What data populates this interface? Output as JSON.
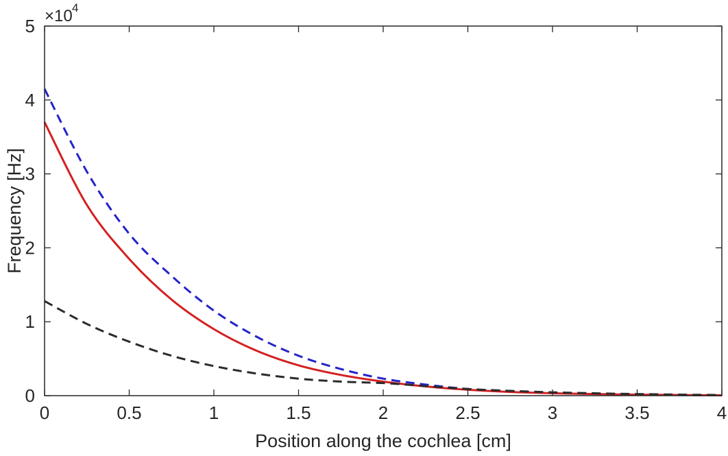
{
  "chart_data": {
    "type": "line",
    "title": "",
    "xlabel": "Position along the cochlea [cm]",
    "ylabel": "Frequency [Hz]",
    "xlim": [
      0,
      4
    ],
    "ylim": [
      0,
      50000
    ],
    "xticks": [
      0,
      0.5,
      1,
      1.5,
      2,
      2.5,
      3,
      3.5,
      4
    ],
    "xtick_labels": [
      "0",
      "0.5",
      "1",
      "1.5",
      "2",
      "2.5",
      "3",
      "3.5",
      "4"
    ],
    "yticks": [
      0,
      10000,
      20000,
      30000,
      40000,
      50000
    ],
    "ytick_labels": [
      "0",
      "1",
      "2",
      "3",
      "4",
      "5"
    ],
    "y_exponent": {
      "base": "×10",
      "power": "4"
    },
    "grid": false,
    "legend": "none",
    "series": [
      {
        "name": "blue dashed",
        "color": "#2323c8",
        "style": "dashed",
        "x": [
          0,
          0.25,
          0.5,
          0.75,
          1,
          1.25,
          1.5,
          1.75,
          2,
          2.25,
          2.5,
          2.75,
          3,
          3.25,
          3.5,
          3.75,
          4
        ],
        "y": [
          41500,
          30300,
          21900,
          16200,
          11500,
          8000,
          5400,
          3600,
          2300,
          1500,
          900,
          600,
          350,
          250,
          150,
          80,
          40
        ]
      },
      {
        "name": "red solid",
        "color": "#d42020",
        "style": "solid",
        "x": [
          0,
          0.25,
          0.5,
          0.75,
          1,
          1.25,
          1.5,
          1.75,
          2,
          2.25,
          2.5,
          2.75,
          3,
          3.25,
          3.5,
          3.75,
          4
        ],
        "y": [
          37000,
          25800,
          18500,
          13000,
          9000,
          6100,
          4100,
          2800,
          1900,
          1250,
          800,
          500,
          330,
          220,
          140,
          90,
          50
        ]
      },
      {
        "name": "black dashed",
        "color": "#2b2b2b",
        "style": "dashed",
        "x": [
          0,
          0.25,
          0.5,
          0.75,
          1,
          1.25,
          1.5,
          1.75,
          2,
          2.25,
          2.5,
          2.75,
          3,
          3.25,
          3.5,
          3.75,
          4
        ],
        "y": [
          12800,
          9700,
          7300,
          5400,
          4000,
          3000,
          2300,
          1900,
          1700,
          1300,
          900,
          650,
          450,
          320,
          220,
          140,
          80
        ]
      }
    ]
  }
}
